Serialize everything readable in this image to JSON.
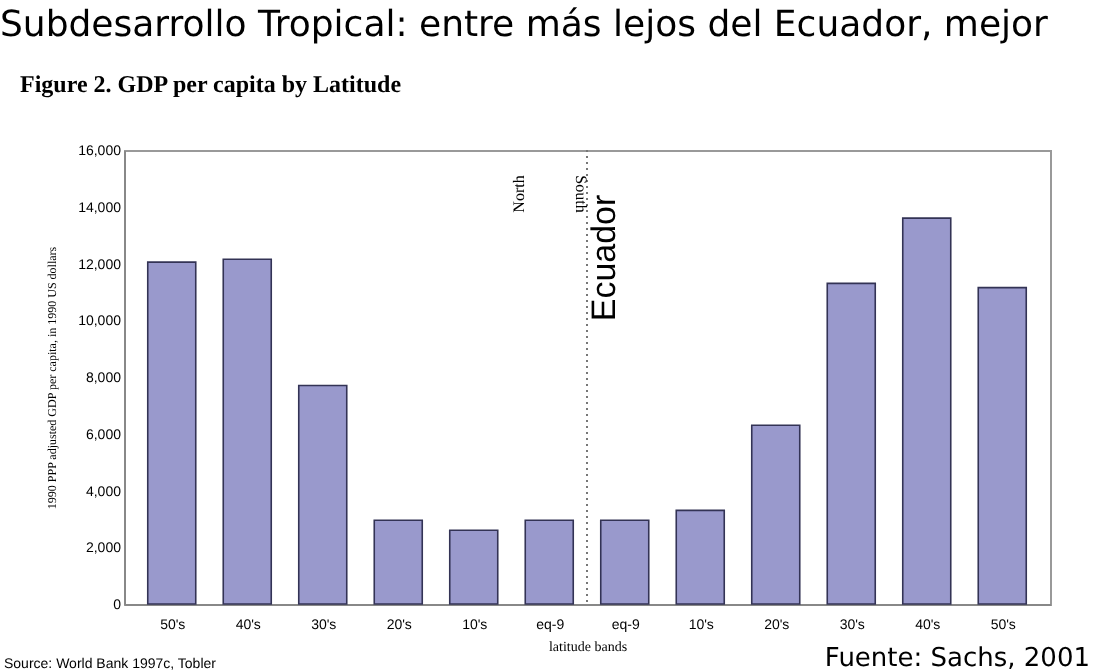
{
  "chart_data": {
    "type": "bar",
    "title": "Subdesarrollo Tropical: entre más lejos del Ecuador, mejor",
    "subtitle": "Figure 2. GDP per capita by Latitude",
    "xlabel": "latitude bands",
    "ylabel": "1990 PPP adjusted GDP per capita, in 1990 US dollars",
    "categories": [
      "50's",
      "40's",
      "30's",
      "20's",
      "10's",
      "eq-9",
      "eq-9",
      "10's",
      "20's",
      "30's",
      "40's",
      "50's"
    ],
    "values": [
      12050,
      12150,
      7700,
      2950,
      2600,
      2950,
      2950,
      3300,
      6300,
      11300,
      13600,
      11150
    ],
    "color": "#9999cc",
    "ylim": [
      0,
      16000
    ],
    "yticks": [
      0,
      {
        "value": 2000,
        "label": "2,000"
      },
      {
        "value": 4000,
        "label": "4,000"
      },
      {
        "value": 6000,
        "label": "6,000"
      },
      {
        "value": 8000,
        "label": "8,000"
      },
      {
        "value": 10000,
        "label": "10,000"
      },
      {
        "value": 12000,
        "label": "12,000"
      },
      {
        "value": 14000,
        "label": "14,000"
      },
      {
        "value": 16000,
        "label": "16,000"
      }
    ],
    "grid": false,
    "annotations": [
      "North",
      "South",
      "Source: World Bank 1997c, Tobler",
      "Fuente: Sachs, 2001",
      "Ecuador"
    ]
  }
}
